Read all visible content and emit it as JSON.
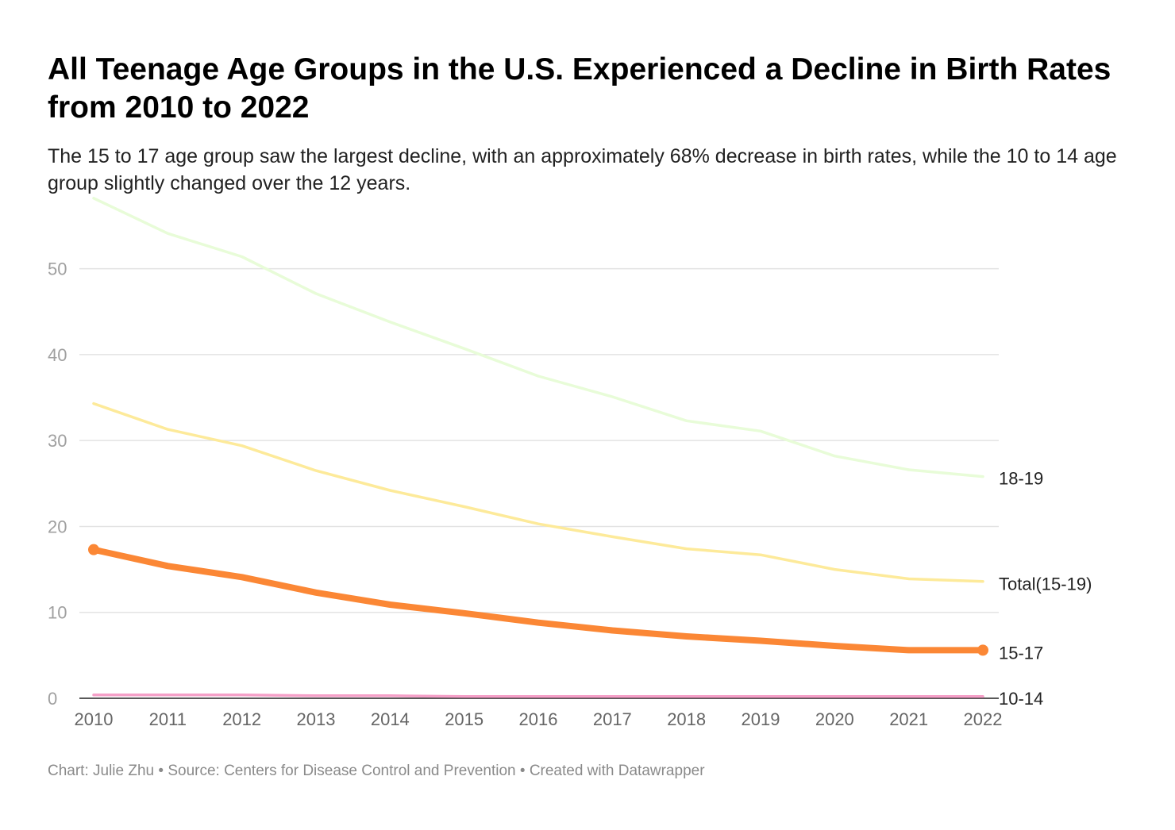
{
  "header": {
    "title": "All Teenage Age Groups in the U.S. Experienced a Decline in Birth Rates from 2010 to 2022",
    "subtitle": "The 15 to 17 age group saw the largest decline, with an approximately 68% decrease in birth rates, while the 10 to 14 age group slightly changed over the 12 years."
  },
  "footer": {
    "text": "Chart: Julie Zhu • Source: Centers for Disease Control and Prevention • Created with Datawrapper"
  },
  "chart_data": {
    "type": "line",
    "title": "All Teenage Age Groups in the U.S. Experienced a Decline in Birth Rates from 2010 to 2022",
    "subtitle": "The 15 to 17 age group saw the largest decline, with an approximately 68% decrease in birth rates, while the 10 to 14 age group slightly changed over the 12 years.",
    "xlabel": "",
    "ylabel": "",
    "x": [
      "2010",
      "2011",
      "2012",
      "2013",
      "2014",
      "2015",
      "2016",
      "2017",
      "2018",
      "2019",
      "2020",
      "2021",
      "2022"
    ],
    "ylim": [
      0,
      58
    ],
    "yticks": [
      0,
      10,
      20,
      30,
      40,
      50
    ],
    "grid": true,
    "legend": "direct labels at right end of lines",
    "series": [
      {
        "name": "18-19",
        "color": "#e8fcd8",
        "stroke_weight": "thin",
        "values": [
          58.2,
          54.1,
          51.4,
          47.1,
          43.8,
          40.7,
          37.5,
          35.1,
          32.3,
          31.1,
          28.2,
          26.6,
          25.8
        ]
      },
      {
        "name": "Total(15-19)",
        "color": "#fdea9a",
        "stroke_weight": "thin",
        "values": [
          34.3,
          31.3,
          29.4,
          26.5,
          24.2,
          22.3,
          20.3,
          18.8,
          17.4,
          16.7,
          15.0,
          13.9,
          13.6
        ]
      },
      {
        "name": "15-17",
        "color": "#fb8735",
        "stroke_weight": "thick",
        "end_markers": true,
        "values": [
          17.3,
          15.4,
          14.1,
          12.3,
          10.9,
          9.9,
          8.8,
          7.9,
          7.2,
          6.7,
          6.1,
          5.6,
          5.6
        ]
      },
      {
        "name": "10-14",
        "color": "#f5a0c8",
        "stroke_weight": "thin",
        "values": [
          0.4,
          0.4,
          0.4,
          0.3,
          0.3,
          0.2,
          0.2,
          0.2,
          0.2,
          0.2,
          0.2,
          0.2,
          0.2
        ]
      }
    ]
  }
}
